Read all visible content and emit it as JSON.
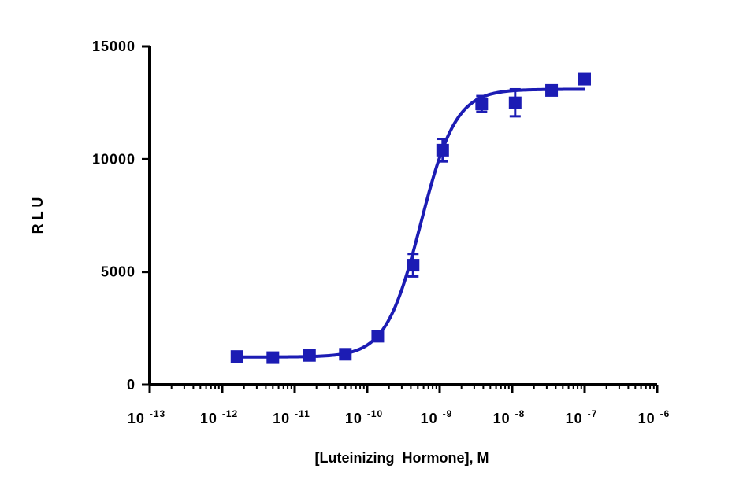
{
  "chart_data": {
    "type": "scatter",
    "title": "",
    "xlabel": "[Luteinizing  Hormone], M",
    "ylabel": "R L U",
    "x_scale": "log",
    "x_ticks": [
      {
        "base": "10",
        "exp": "-13",
        "value": 1e-13
      },
      {
        "base": "10",
        "exp": "-12",
        "value": 1e-12
      },
      {
        "base": "10",
        "exp": "-11",
        "value": 1e-11
      },
      {
        "base": "10",
        "exp": "-10",
        "value": 1e-10
      },
      {
        "base": "10",
        "exp": "-9",
        "value": 1e-09
      },
      {
        "base": "10",
        "exp": "-8",
        "value": 1e-08
      },
      {
        "base": "10",
        "exp": "-7",
        "value": 1e-07
      },
      {
        "base": "10",
        "exp": "-6",
        "value": 1e-06
      }
    ],
    "y_ticks": [
      "0",
      "5000",
      "10000",
      "15000"
    ],
    "xlim": [
      1e-13,
      1e-06
    ],
    "ylim": [
      0,
      15000
    ],
    "grid": false,
    "colors": {
      "series": "#1c1cb4",
      "axis": "#000000"
    },
    "points": [
      {
        "x": 1.6e-12,
        "y": 1250,
        "err": 150
      },
      {
        "x": 5e-12,
        "y": 1200,
        "err": 150
      },
      {
        "x": 1.6e-11,
        "y": 1300,
        "err": 200
      },
      {
        "x": 5e-11,
        "y": 1350,
        "err": 150
      },
      {
        "x": 1.4e-10,
        "y": 2150,
        "err": 200
      },
      {
        "x": 4.3e-10,
        "y": 5300,
        "err": 500
      },
      {
        "x": 1.1e-09,
        "y": 10400,
        "err": 500
      },
      {
        "x": 3.8e-09,
        "y": 12450,
        "err": 350
      },
      {
        "x": 1.1e-08,
        "y": 12500,
        "err": 600
      },
      {
        "x": 3.5e-08,
        "y": 13050,
        "err": 150
      },
      {
        "x": 1e-07,
        "y": 13550,
        "err": 150
      }
    ],
    "fit": {
      "bottom": 1230,
      "top": 13100,
      "ec50": 5.5e-10,
      "hill": 1.8,
      "x_range": [
        1.6e-12,
        1e-07
      ]
    }
  }
}
